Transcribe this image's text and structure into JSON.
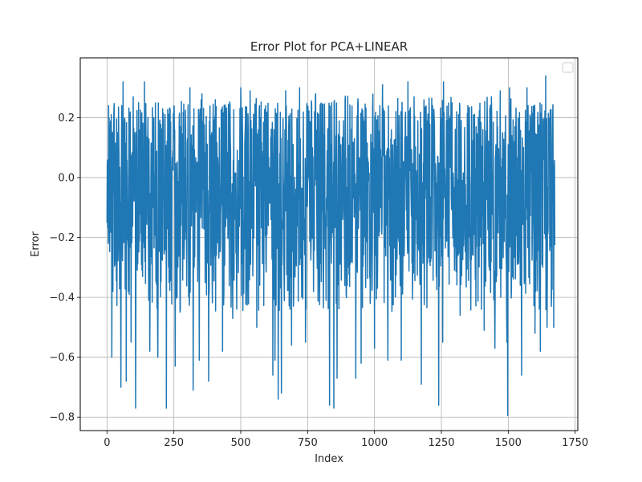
{
  "chart_data": {
    "type": "line",
    "title": "Error Plot for PCA+LINEAR",
    "xlabel": "Index",
    "ylabel": "Error",
    "xlim": [
      -100,
      1760
    ],
    "ylim": [
      -0.845,
      0.4
    ],
    "x_ticks": [
      0,
      250,
      500,
      750,
      1000,
      1250,
      1500,
      1750
    ],
    "x_tick_labels": [
      "0",
      "250",
      "500",
      "750",
      "1000",
      "1250",
      "1500",
      "1750"
    ],
    "y_ticks": [
      -0.8,
      -0.6,
      -0.4,
      -0.2,
      0.0,
      0.2
    ],
    "y_tick_labels": [
      "−0.8",
      "−0.6",
      "−0.4",
      "−0.2",
      "0.0",
      "0.2"
    ],
    "grid": true,
    "legend": {
      "placement": "upper right",
      "entries": []
    },
    "series": [
      {
        "color": "#1f77b4",
        "n_points": 1675,
        "typical_range": [
          -0.3,
          0.25
        ],
        "max_value": 0.34,
        "min_value": -0.795,
        "x": [
          0,
          12,
          18,
          22,
          40,
          52,
          55,
          60,
          72,
          90,
          107,
          118,
          140,
          160,
          175,
          190,
          208,
          222,
          232,
          255,
          270,
          310,
          322,
          345,
          355,
          380,
          405,
          432,
          470,
          500,
          510,
          535,
          560,
          570,
          620,
          628,
          640,
          652,
          668,
          690,
          720,
          742,
          742,
          780,
          832,
          840,
          848,
          860,
          890,
          930,
          950,
          1000,
          1030,
          1050,
          1100,
          1125,
          1175,
          1185,
          1210,
          1240,
          1255,
          1258,
          1290,
          1320,
          1350,
          1400,
          1410,
          1450,
          1470,
          1495,
          1498,
          1505,
          1550,
          1570,
          1600,
          1620,
          1640,
          1645,
          1670
        ],
        "y": [
          -0.15,
          0.12,
          -0.6,
          -0.38,
          0.15,
          -0.7,
          0.24,
          0.32,
          -0.68,
          -0.55,
          -0.77,
          0.25,
          0.32,
          -0.58,
          0.2,
          -0.6,
          0.23,
          -0.77,
          -0.35,
          -0.63,
          0.2,
          0.3,
          -0.71,
          -0.61,
          0.28,
          -0.68,
          0.26,
          -0.58,
          -0.47,
          0.3,
          -0.35,
          0.29,
          -0.5,
          0.24,
          -0.66,
          -0.61,
          -0.74,
          -0.72,
          0.29,
          -0.56,
          0.3,
          0.34,
          -0.55,
          0.28,
          -0.76,
          0.25,
          -0.77,
          -0.67,
          0.26,
          -0.67,
          -0.62,
          -0.57,
          0.31,
          -0.61,
          -0.61,
          0.32,
          -0.69,
          0.26,
          -0.28,
          -0.76,
          -0.55,
          0.32,
          0.25,
          -0.46,
          0.23,
          -0.44,
          -0.51,
          -0.57,
          0.29,
          -0.55,
          -0.795,
          0.3,
          -0.66,
          0.3,
          -0.52,
          -0.58,
          0.34,
          -0.5,
          -0.5
        ]
      }
    ]
  }
}
